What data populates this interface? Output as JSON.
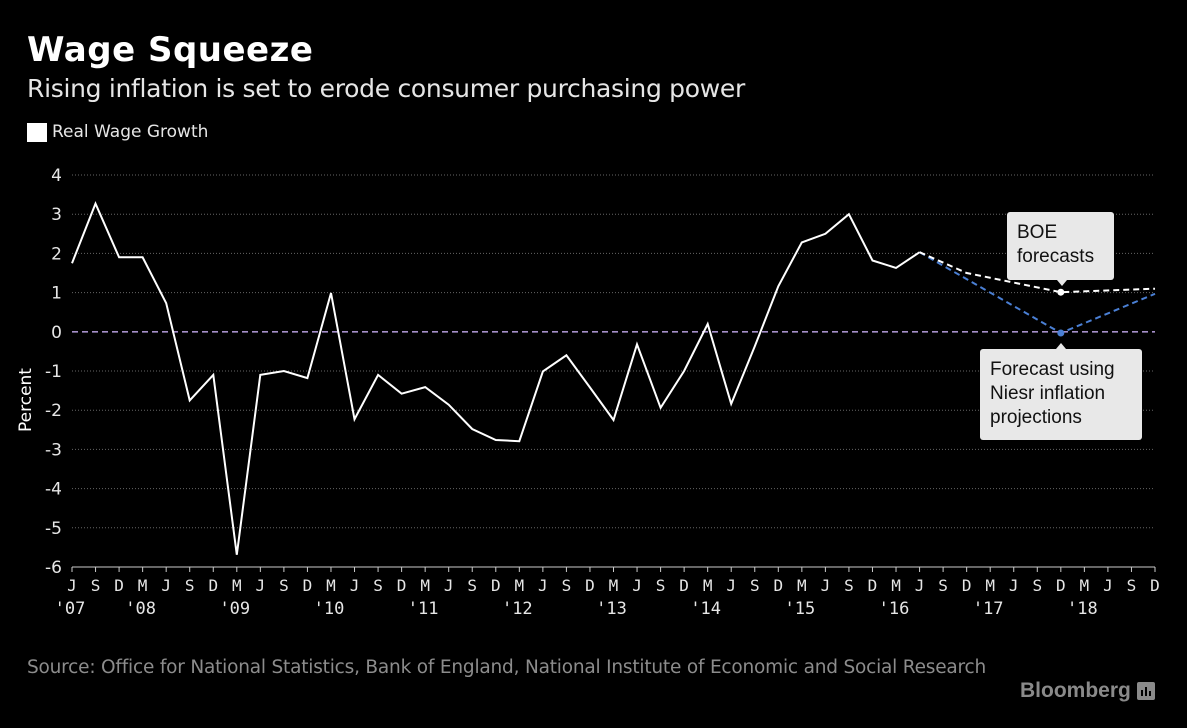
{
  "header": {
    "title": "Wage Squeeze",
    "subtitle": "Rising inflation is set to erode consumer purchasing power"
  },
  "legend": {
    "label": "Real Wage Growth",
    "color": "#ffffff"
  },
  "annotations": {
    "boe": "BOE forecasts",
    "niesr": "Forecast using Niesr inflation projections"
  },
  "footer": {
    "source": "Source: Office for National Statistics, Bank of England, National Institute of Economic and Social Research",
    "brand": "Bloomberg"
  },
  "colors": {
    "background": "#000000",
    "actual_line": "#ffffff",
    "boe_line": "#ffffff",
    "niesr_line": "#4a7fd4",
    "zero_line": "#a58fc9",
    "grid": "#666666"
  },
  "chart_data": {
    "type": "line",
    "title": "Wage Squeeze",
    "subtitle": "Rising inflation is set to erode consumer purchasing power",
    "xlabel": "",
    "ylabel": "Percent",
    "ylim": [
      -6,
      4
    ],
    "yticks": [
      4,
      3,
      2,
      1,
      0,
      -1,
      -2,
      -3,
      -4,
      -5,
      -6
    ],
    "grid": true,
    "legend_position": "top-left",
    "x_tick_labels": [
      "J",
      "S",
      "D",
      "M",
      "J",
      "S",
      "D",
      "M",
      "J",
      "S",
      "D",
      "M",
      "J",
      "S",
      "D",
      "M",
      "J",
      "S",
      "D",
      "M",
      "J",
      "S",
      "D",
      "M",
      "J",
      "S",
      "D",
      "M",
      "J",
      "S",
      "D",
      "M",
      "J",
      "S",
      "D",
      "M",
      "J",
      "S",
      "D",
      "M",
      "J",
      "S",
      "D",
      "M",
      "J",
      "S",
      "D"
    ],
    "x_year_labels": [
      {
        "index": 0,
        "label": "'07"
      },
      {
        "index": 3,
        "label": "'08"
      },
      {
        "index": 7,
        "label": "'09"
      },
      {
        "index": 11,
        "label": "'10"
      },
      {
        "index": 15,
        "label": "'11"
      },
      {
        "index": 19,
        "label": "'12"
      },
      {
        "index": 23,
        "label": "'13"
      },
      {
        "index": 27,
        "label": "'14"
      },
      {
        "index": 31,
        "label": "'15"
      },
      {
        "index": 35,
        "label": "'16"
      },
      {
        "index": 39,
        "label": "'17"
      },
      {
        "index": 43,
        "label": "'18"
      }
    ],
    "series": [
      {
        "name": "Real Wage Growth",
        "style": "solid",
        "x": [
          "Jun 2007",
          "Sep 2007",
          "Dec 2007",
          "Mar 2008",
          "Jun 2008",
          "Sep 2008",
          "Dec 2008",
          "Mar 2009",
          "Jun 2009",
          "Sep 2009",
          "Dec 2009",
          "Mar 2010",
          "Jun 2010",
          "Sep 2010",
          "Dec 2010",
          "Mar 2011",
          "Jun 2011",
          "Sep 2011",
          "Dec 2011",
          "Mar 2012",
          "Jun 2012",
          "Sep 2012",
          "Dec 2012",
          "Mar 2013",
          "Jun 2013",
          "Sep 2013",
          "Dec 2013",
          "Mar 2014",
          "Jun 2014",
          "Sep 2014",
          "Dec 2014",
          "Mar 2015",
          "Jun 2015",
          "Sep 2015",
          "Dec 2015",
          "Mar 2016",
          "Jun 2016"
        ],
        "start_index": 0,
        "values": [
          1.75,
          3.27,
          1.9,
          1.9,
          0.73,
          -1.75,
          -1.1,
          -5.69,
          -1.1,
          -1.0,
          -1.18,
          0.99,
          -2.23,
          -1.1,
          -1.58,
          -1.41,
          -1.86,
          -2.48,
          -2.76,
          -2.79,
          -1.01,
          -0.6,
          -1.42,
          -2.25,
          -0.32,
          -1.94,
          -1.0,
          0.2,
          -1.84,
          -0.37,
          1.16,
          2.28,
          2.5,
          3.0,
          1.82,
          1.63,
          2.03
        ]
      },
      {
        "name": "BOE forecasts",
        "style": "dashed",
        "x": [
          "Jun 2016",
          "Dec 2016",
          "Dec 2017",
          "Dec 2018"
        ],
        "indices": [
          36,
          38,
          42,
          46
        ],
        "values": [
          2.03,
          1.5,
          1.01,
          1.1
        ]
      },
      {
        "name": "Forecast using Niesr inflation projections",
        "style": "dashed",
        "x": [
          "Jun 2016",
          "Dec 2017",
          "Dec 2018"
        ],
        "indices": [
          36,
          42,
          46
        ],
        "values": [
          2.03,
          -0.03,
          0.97
        ]
      }
    ],
    "reference_lines": [
      {
        "y": 0,
        "style": "dashed",
        "label": ""
      }
    ]
  }
}
